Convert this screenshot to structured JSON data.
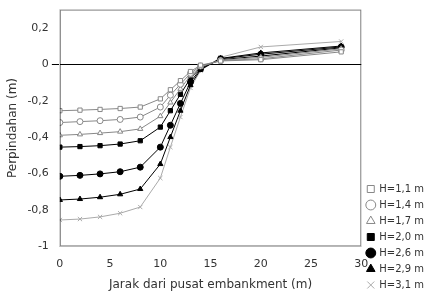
{
  "chart_data": {
    "type": "line",
    "xlabel": "Jarak dari pusat embankment (m)",
    "ylabel": "Perpindahan (m)",
    "x": [
      0,
      2,
      4,
      6,
      8,
      10,
      11,
      12,
      13,
      14,
      16,
      20,
      28
    ],
    "series": [
      {
        "name": "H=1,1 m",
        "color": "#888888",
        "marker": "square-open",
        "values": [
          -0.255,
          -0.252,
          -0.248,
          -0.243,
          -0.235,
          -0.19,
          -0.14,
          -0.09,
          -0.04,
          -0.005,
          0.018,
          0.025,
          0.068
        ]
      },
      {
        "name": "H=1,4 m",
        "color": "#888888",
        "marker": "circle-open",
        "values": [
          -0.32,
          -0.315,
          -0.31,
          -0.303,
          -0.29,
          -0.235,
          -0.17,
          -0.11,
          -0.05,
          -0.01,
          0.02,
          0.03,
          0.078
        ]
      },
      {
        "name": "H=1,7 m",
        "color": "#888888",
        "marker": "triangle-open",
        "values": [
          -0.39,
          -0.385,
          -0.378,
          -0.37,
          -0.355,
          -0.285,
          -0.21,
          -0.135,
          -0.062,
          -0.015,
          0.022,
          0.038,
          0.085
        ]
      },
      {
        "name": "H=2,0 m",
        "color": "#000000",
        "marker": "square",
        "values": [
          -0.455,
          -0.452,
          -0.447,
          -0.438,
          -0.42,
          -0.345,
          -0.255,
          -0.165,
          -0.077,
          -0.02,
          0.025,
          0.045,
          0.09
        ]
      },
      {
        "name": "H=2,6 m",
        "color": "#000000",
        "marker": "circle",
        "values": [
          -0.615,
          -0.61,
          -0.602,
          -0.59,
          -0.565,
          -0.455,
          -0.335,
          -0.215,
          -0.098,
          -0.025,
          0.03,
          0.055,
          0.095
        ]
      },
      {
        "name": "H=2,9 m",
        "color": "#000000",
        "marker": "triangle",
        "values": [
          -0.745,
          -0.74,
          -0.73,
          -0.714,
          -0.685,
          -0.548,
          -0.4,
          -0.255,
          -0.115,
          -0.03,
          0.032,
          0.062,
          0.1
        ]
      },
      {
        "name": "H=3,1 m",
        "color": "#aaaaaa",
        "marker": "x",
        "values": [
          -0.855,
          -0.85,
          -0.838,
          -0.818,
          -0.784,
          -0.625,
          -0.455,
          -0.29,
          -0.13,
          -0.035,
          0.038,
          0.095,
          0.125
        ]
      }
    ],
    "xlim": [
      0,
      30
    ],
    "xticks": [
      0,
      5,
      10,
      15,
      20,
      25,
      30
    ],
    "ylim": [
      -1,
      0.3
    ],
    "yticks": [
      -1,
      {
        "value": -0.8,
        "label": "-0,8"
      },
      {
        "value": -0.6,
        "label": "-0,6"
      },
      {
        "value": -0.4,
        "label": "-0,4"
      },
      {
        "value": -0.2,
        "label": "-0,2"
      },
      0,
      {
        "value": 0.2,
        "label": "0,2"
      }
    ],
    "grid": false,
    "legend": "lower right"
  }
}
